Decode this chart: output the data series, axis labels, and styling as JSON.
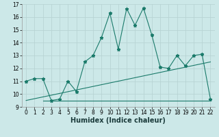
{
  "xlabel": "Humidex (Indice chaleur)",
  "line1_x": [
    0,
    1,
    2,
    3,
    4,
    5,
    6,
    7,
    8,
    9,
    10,
    11,
    12,
    13,
    14,
    15,
    16,
    17,
    18,
    19,
    20,
    21,
    22
  ],
  "line1_y": [
    11.0,
    11.2,
    11.2,
    9.5,
    9.6,
    11.0,
    10.2,
    12.5,
    13.0,
    14.4,
    16.3,
    13.5,
    16.65,
    15.35,
    16.7,
    14.6,
    12.1,
    12.0,
    13.0,
    12.2,
    13.0,
    13.1,
    9.6
  ],
  "line2_x": [
    2,
    22
  ],
  "line2_y": [
    9.5,
    9.5
  ],
  "line3_x": [
    0,
    22
  ],
  "line3_y": [
    9.5,
    12.5
  ],
  "color": "#1a7a6a",
  "bg_color": "#cce8e8",
  "grid_color": "#b8d4d4",
  "ylim": [
    9,
    17
  ],
  "xlim": [
    -0.5,
    22.5
  ],
  "yticks": [
    9,
    10,
    11,
    12,
    13,
    14,
    15,
    16,
    17
  ],
  "xticks": [
    0,
    1,
    2,
    3,
    4,
    5,
    6,
    7,
    8,
    9,
    10,
    11,
    12,
    13,
    14,
    15,
    16,
    17,
    18,
    19,
    20,
    21,
    22
  ],
  "tick_fontsize": 5.5,
  "label_fontsize": 7
}
